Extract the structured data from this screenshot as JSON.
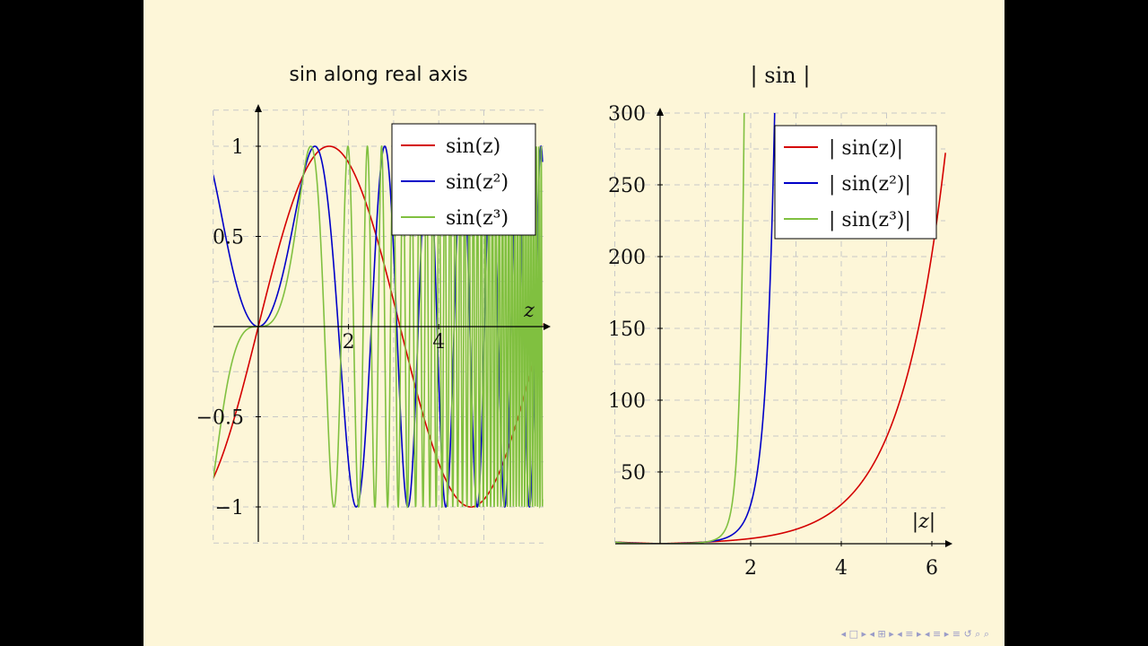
{
  "charts": [
    {
      "title": "sin along real axis",
      "xlabel": "z",
      "legend": [
        "sin(z)",
        "sin(z²)",
        "sin(z³)"
      ]
    },
    {
      "title": "| sin |",
      "xlabel": "|z|",
      "legend": [
        "| sin(z)|",
        "| sin(z²)|",
        "| sin(z³)|"
      ]
    }
  ],
  "colors": {
    "red": "#d40000",
    "blue": "#0000c8",
    "green": "#80c040",
    "axis": "#000000",
    "grid": "#c8c8c8"
  },
  "navigation": {
    "icons": [
      "nav-first-icon",
      "nav-prev-frame-icon",
      "nav-prev-section-icon",
      "nav-next-section-icon",
      "nav-toc-icon",
      "nav-search-icon"
    ],
    "glyphs": "◂ □ ▸ ◂ ⊞ ▸ ◂ ≡ ▸ ◂ ≡ ▸   ≡   ↺ ⌕ ⌕"
  },
  "chart_data": [
    {
      "type": "line",
      "title": "sin along real axis",
      "xlabel": "z",
      "ylabel": "",
      "xlim": [
        -1,
        6.4
      ],
      "ylim": [
        -1.2,
        1.2
      ],
      "xticks": [
        2,
        4
      ],
      "xtick_labels": [
        "2",
        "4"
      ],
      "yticks": [
        -1,
        -0.5,
        0.5,
        1
      ],
      "ytick_labels": [
        "−1",
        "−0.5",
        "0.5",
        "1"
      ],
      "grid": true,
      "legend_position": "top-right",
      "domain": [
        -1,
        6.3
      ],
      "series": [
        {
          "name": "sin(z)",
          "function": "sin(z)",
          "color": "#d40000"
        },
        {
          "name": "sin(z²)",
          "function": "sin(z^2)",
          "color": "#0000c8"
        },
        {
          "name": "sin(z³)",
          "function": "sin(z^3)",
          "color": "#80c040"
        }
      ]
    },
    {
      "type": "line",
      "title": "| sin |",
      "xlabel": "|z|",
      "ylabel": "",
      "xlim": [
        -1,
        6.4
      ],
      "ylim": [
        0,
        300
      ],
      "xticks": [
        2,
        4,
        6
      ],
      "xtick_labels": [
        "2",
        "4",
        "6"
      ],
      "yticks": [
        50,
        100,
        150,
        200,
        250,
        300
      ],
      "ytick_labels": [
        "50",
        "100",
        "150",
        "200",
        "250",
        "300"
      ],
      "grid": true,
      "legend_position": "top-right",
      "domain": [
        -1,
        6.3
      ],
      "series": [
        {
          "name": "| sin(z)|",
          "function": "max |sin| on |z|=r = sinh(r)",
          "color": "#d40000"
        },
        {
          "name": "| sin(z²)|",
          "function": "sinh(r^2)",
          "color": "#0000c8"
        },
        {
          "name": "| sin(z³)|",
          "function": "sinh(r^3)",
          "color": "#80c040"
        }
      ]
    }
  ]
}
